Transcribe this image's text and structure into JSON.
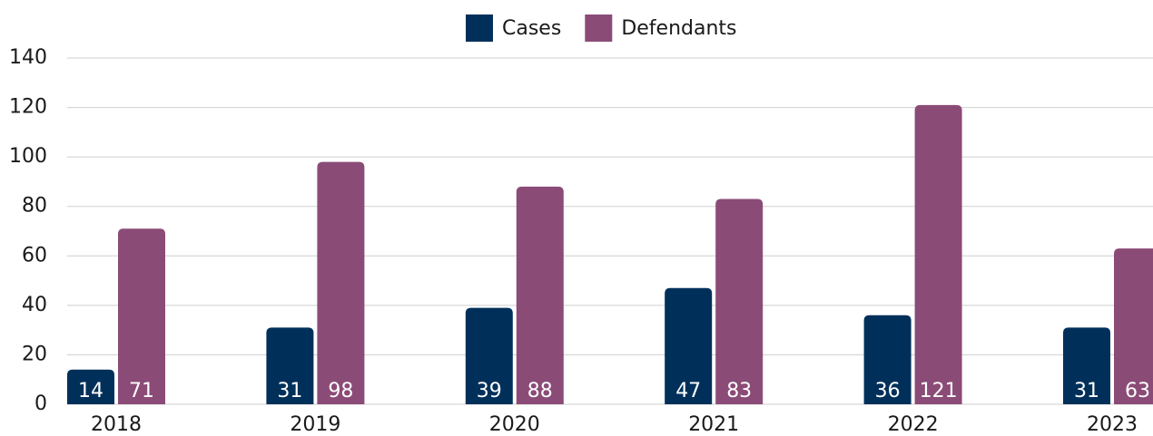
{
  "chart_data": {
    "type": "bar",
    "categories": [
      "2018",
      "2019",
      "2020",
      "2021",
      "2022",
      "2023"
    ],
    "series": [
      {
        "name": "Cases",
        "color": "#00305a",
        "values": [
          14,
          31,
          39,
          47,
          36,
          31
        ]
      },
      {
        "name": "Defendants",
        "color": "#8b4b77",
        "values": [
          71,
          98,
          88,
          83,
          121,
          63
        ]
      }
    ],
    "ylim": [
      0,
      140
    ],
    "yticks": [
      0,
      20,
      40,
      60,
      80,
      100,
      120,
      140
    ],
    "grid": true,
    "legend": "top"
  }
}
